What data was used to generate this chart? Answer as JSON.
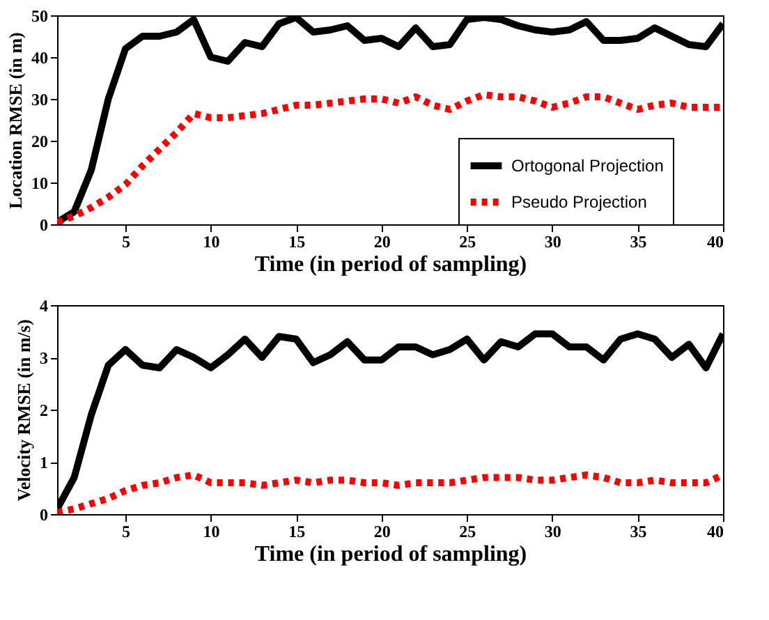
{
  "chart_data": [
    {
      "type": "line",
      "xlabel": "Time (in period of sampling)",
      "ylabel": "Location RMSE (in m)",
      "x": [
        1,
        2,
        3,
        4,
        5,
        6,
        7,
        8,
        9,
        10,
        11,
        12,
        13,
        14,
        15,
        16,
        17,
        18,
        19,
        20,
        21,
        22,
        23,
        24,
        25,
        26,
        27,
        28,
        29,
        30,
        31,
        32,
        33,
        34,
        35,
        36,
        37,
        38,
        39,
        40
      ],
      "xlim": [
        1,
        40
      ],
      "xticks": [
        5,
        10,
        15,
        20,
        25,
        30,
        35,
        40
      ],
      "ylim": [
        0,
        50
      ],
      "yticks": [
        0,
        10,
        20,
        30,
        40,
        50
      ],
      "grid": false,
      "legend": "bottom right",
      "series": [
        {
          "name": "Ortogonal Projection",
          "color": "#000000",
          "line_style": "solid",
          "values": [
            0.5,
            3,
            13,
            30,
            42,
            45,
            45,
            46,
            49,
            40,
            39,
            43.5,
            42.5,
            48,
            49.5,
            46,
            46.5,
            47.5,
            44,
            44.5,
            42.5,
            47,
            42.5,
            43,
            49,
            49.5,
            49,
            47.5,
            46.5,
            46,
            46.5,
            48.5,
            44,
            44,
            44.5,
            47,
            45,
            43,
            42.5,
            48
          ]
        },
        {
          "name": "Pseudo Projection",
          "color": "#ff0000",
          "line_style": "dotted",
          "values": [
            0.5,
            2,
            4,
            6.5,
            9.5,
            14,
            18,
            22,
            26.5,
            25.5,
            25.5,
            26,
            26.5,
            27.5,
            28.5,
            28.5,
            29,
            29.5,
            30,
            30,
            29,
            30.5,
            28.5,
            27.5,
            29.5,
            31,
            30.5,
            30.5,
            29.5,
            28,
            29,
            30.5,
            30.5,
            29,
            27.5,
            28.5,
            29,
            28,
            28,
            28
          ]
        }
      ]
    },
    {
      "type": "line",
      "xlabel": "Time (in period of sampling)",
      "ylabel": "Velocity RMSE (in m/s)",
      "x": [
        1,
        2,
        3,
        4,
        5,
        6,
        7,
        8,
        9,
        10,
        11,
        12,
        13,
        14,
        15,
        16,
        17,
        18,
        19,
        20,
        21,
        22,
        23,
        24,
        25,
        26,
        27,
        28,
        29,
        30,
        31,
        32,
        33,
        34,
        35,
        36,
        37,
        38,
        39,
        40
      ],
      "xlim": [
        1,
        40
      ],
      "xticks": [
        5,
        10,
        15,
        20,
        25,
        30,
        35,
        40
      ],
      "ylim": [
        0,
        4
      ],
      "yticks": [
        0,
        1,
        2,
        3,
        4
      ],
      "grid": false,
      "legend": "right",
      "series": [
        {
          "name": "Ortogonal Projection",
          "color": "#000000",
          "line_style": "solid",
          "values": [
            0.1,
            0.7,
            1.9,
            2.85,
            3.15,
            2.85,
            2.8,
            3.15,
            3.0,
            2.8,
            3.05,
            3.35,
            3.0,
            3.4,
            3.35,
            2.9,
            3.05,
            3.3,
            2.95,
            2.95,
            3.2,
            3.2,
            3.05,
            3.15,
            3.35,
            2.95,
            3.3,
            3.2,
            3.45,
            3.45,
            3.2,
            3.2,
            2.95,
            3.35,
            3.45,
            3.35,
            3.0,
            3.25,
            2.8,
            3.45
          ]
        },
        {
          "name": "Pseudo Projection",
          "color": "#ff0000",
          "line_style": "dotted",
          "values": [
            0.03,
            0.1,
            0.2,
            0.3,
            0.45,
            0.55,
            0.6,
            0.7,
            0.75,
            0.6,
            0.6,
            0.6,
            0.55,
            0.6,
            0.65,
            0.6,
            0.65,
            0.65,
            0.6,
            0.6,
            0.55,
            0.6,
            0.6,
            0.6,
            0.65,
            0.7,
            0.7,
            0.7,
            0.65,
            0.65,
            0.7,
            0.75,
            0.7,
            0.6,
            0.6,
            0.65,
            0.6,
            0.6,
            0.6,
            0.75
          ]
        }
      ]
    }
  ]
}
